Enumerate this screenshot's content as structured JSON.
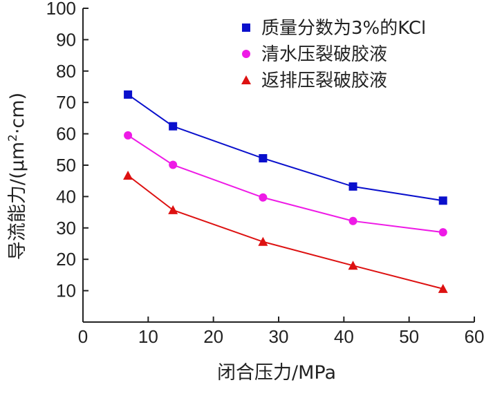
{
  "chart_data": {
    "type": "line",
    "xlabel": "闭合压力/MPa",
    "ylabel_main": "导流能力/(μm",
    "ylabel_sup": "2",
    "ylabel_tail": "·cm)",
    "xlim": [
      0,
      60
    ],
    "ylim": [
      0,
      100
    ],
    "xticks": [
      0,
      10,
      20,
      30,
      40,
      50,
      60
    ],
    "yticks": [
      10,
      20,
      30,
      40,
      50,
      60,
      70,
      80,
      90,
      100
    ],
    "grid": false,
    "legend_position": "top-right",
    "x": [
      6.9,
      13.8,
      27.6,
      41.4,
      55.2
    ],
    "series": [
      {
        "name": "质量分数为3%的KCl",
        "color": "#0a10cc",
        "marker": "square",
        "values": [
          72.5,
          62.4,
          52.2,
          43.2,
          38.7
        ]
      },
      {
        "name": "清水压裂破胶液",
        "color": "#ee1ae6",
        "marker": "circle",
        "values": [
          59.5,
          50.1,
          39.7,
          32.2,
          28.6
        ]
      },
      {
        "name": "返排压裂破胶液",
        "color": "#dd1111",
        "marker": "triangle",
        "values": [
          46.7,
          35.7,
          25.6,
          18.0,
          10.6
        ]
      }
    ]
  }
}
